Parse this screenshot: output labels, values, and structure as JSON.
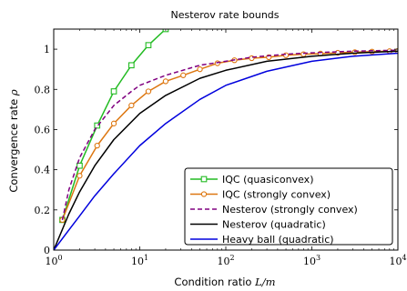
{
  "chart_data": {
    "type": "line",
    "title": "Nesterov rate bounds",
    "xlabel": {
      "text": "Condition ratio",
      "math": "L/m"
    },
    "ylabel": {
      "text": "Convergence rate",
      "math": "ρ"
    },
    "xscale": "log",
    "xlim": [
      1,
      10000
    ],
    "ylim": [
      0,
      1.1
    ],
    "x_ticks": [
      {
        "value": 1,
        "base": "10",
        "exp": "0"
      },
      {
        "value": 10,
        "base": "10",
        "exp": "1"
      },
      {
        "value": 100,
        "base": "10",
        "exp": "2"
      },
      {
        "value": 1000,
        "base": "10",
        "exp": "3"
      },
      {
        "value": 10000,
        "base": "10",
        "exp": "4"
      }
    ],
    "y_ticks": [
      {
        "value": 0,
        "label": "0"
      },
      {
        "value": 0.2,
        "label": "0.2"
      },
      {
        "value": 0.4,
        "label": "0.4"
      },
      {
        "value": 0.6,
        "label": "0.6"
      },
      {
        "value": 0.8,
        "label": "0.8"
      },
      {
        "value": 1,
        "label": "1"
      }
    ],
    "grid": false,
    "legend_position": "bottom-right",
    "series": [
      {
        "name": "IQC (quasiconvex)",
        "color": "#22bb22",
        "marker": "square",
        "dash": "",
        "points": [
          [
            1.26,
            0.15
          ],
          [
            2,
            0.42
          ],
          [
            3.2,
            0.62
          ],
          [
            5,
            0.79
          ],
          [
            8,
            0.92
          ],
          [
            12.6,
            1.02
          ],
          [
            20,
            1.1
          ]
        ]
      },
      {
        "name": "IQC (strongly convex)",
        "color": "#dd7711",
        "marker": "circle",
        "dash": "",
        "points": [
          [
            1.26,
            0.15
          ],
          [
            2,
            0.37
          ],
          [
            3.2,
            0.52
          ],
          [
            5,
            0.63
          ],
          [
            8,
            0.72
          ],
          [
            12.6,
            0.79
          ],
          [
            20,
            0.84
          ],
          [
            32,
            0.87
          ],
          [
            50,
            0.9
          ],
          [
            80,
            0.93
          ],
          [
            126,
            0.945
          ],
          [
            200,
            0.955
          ],
          [
            316,
            0.96
          ],
          [
            500,
            0.97
          ],
          [
            800,
            0.975
          ],
          [
            1260,
            0.978
          ],
          [
            2000,
            0.982
          ],
          [
            3160,
            0.985
          ],
          [
            5000,
            0.988
          ],
          [
            8000,
            0.99
          ],
          [
            10000,
            0.991
          ]
        ]
      },
      {
        "name": "Nesterov (strongly convex)",
        "color": "#800080",
        "marker": "none",
        "dash": "5,3",
        "points": [
          [
            1.26,
            0.15
          ],
          [
            1.5,
            0.3
          ],
          [
            2,
            0.46
          ],
          [
            3,
            0.6
          ],
          [
            5,
            0.72
          ],
          [
            8,
            0.79
          ],
          [
            10,
            0.82
          ],
          [
            20,
            0.87
          ],
          [
            50,
            0.92
          ],
          [
            100,
            0.94
          ],
          [
            200,
            0.96
          ],
          [
            500,
            0.975
          ],
          [
            1000,
            0.982
          ],
          [
            3000,
            0.99
          ],
          [
            10000,
            0.995
          ]
        ]
      },
      {
        "name": "Nesterov (quadratic)",
        "color": "#000000",
        "marker": "none",
        "dash": "",
        "points": [
          [
            1,
            0
          ],
          [
            1.5,
            0.18
          ],
          [
            2,
            0.29
          ],
          [
            3,
            0.42
          ],
          [
            5,
            0.55
          ],
          [
            10,
            0.68
          ],
          [
            20,
            0.77
          ],
          [
            50,
            0.855
          ],
          [
            100,
            0.895
          ],
          [
            300,
            0.94
          ],
          [
            1000,
            0.965
          ],
          [
            3000,
            0.98
          ],
          [
            10000,
            0.99
          ]
        ]
      },
      {
        "name": "Heavy ball (quadratic)",
        "color": "#0000dd",
        "marker": "none",
        "dash": "",
        "points": [
          [
            1,
            0
          ],
          [
            1.5,
            0.1
          ],
          [
            2,
            0.17
          ],
          [
            3,
            0.27
          ],
          [
            5,
            0.38
          ],
          [
            10,
            0.52
          ],
          [
            20,
            0.63
          ],
          [
            50,
            0.75
          ],
          [
            100,
            0.82
          ],
          [
            300,
            0.89
          ],
          [
            1000,
            0.94
          ],
          [
            3000,
            0.965
          ],
          [
            10000,
            0.98
          ]
        ]
      }
    ]
  }
}
